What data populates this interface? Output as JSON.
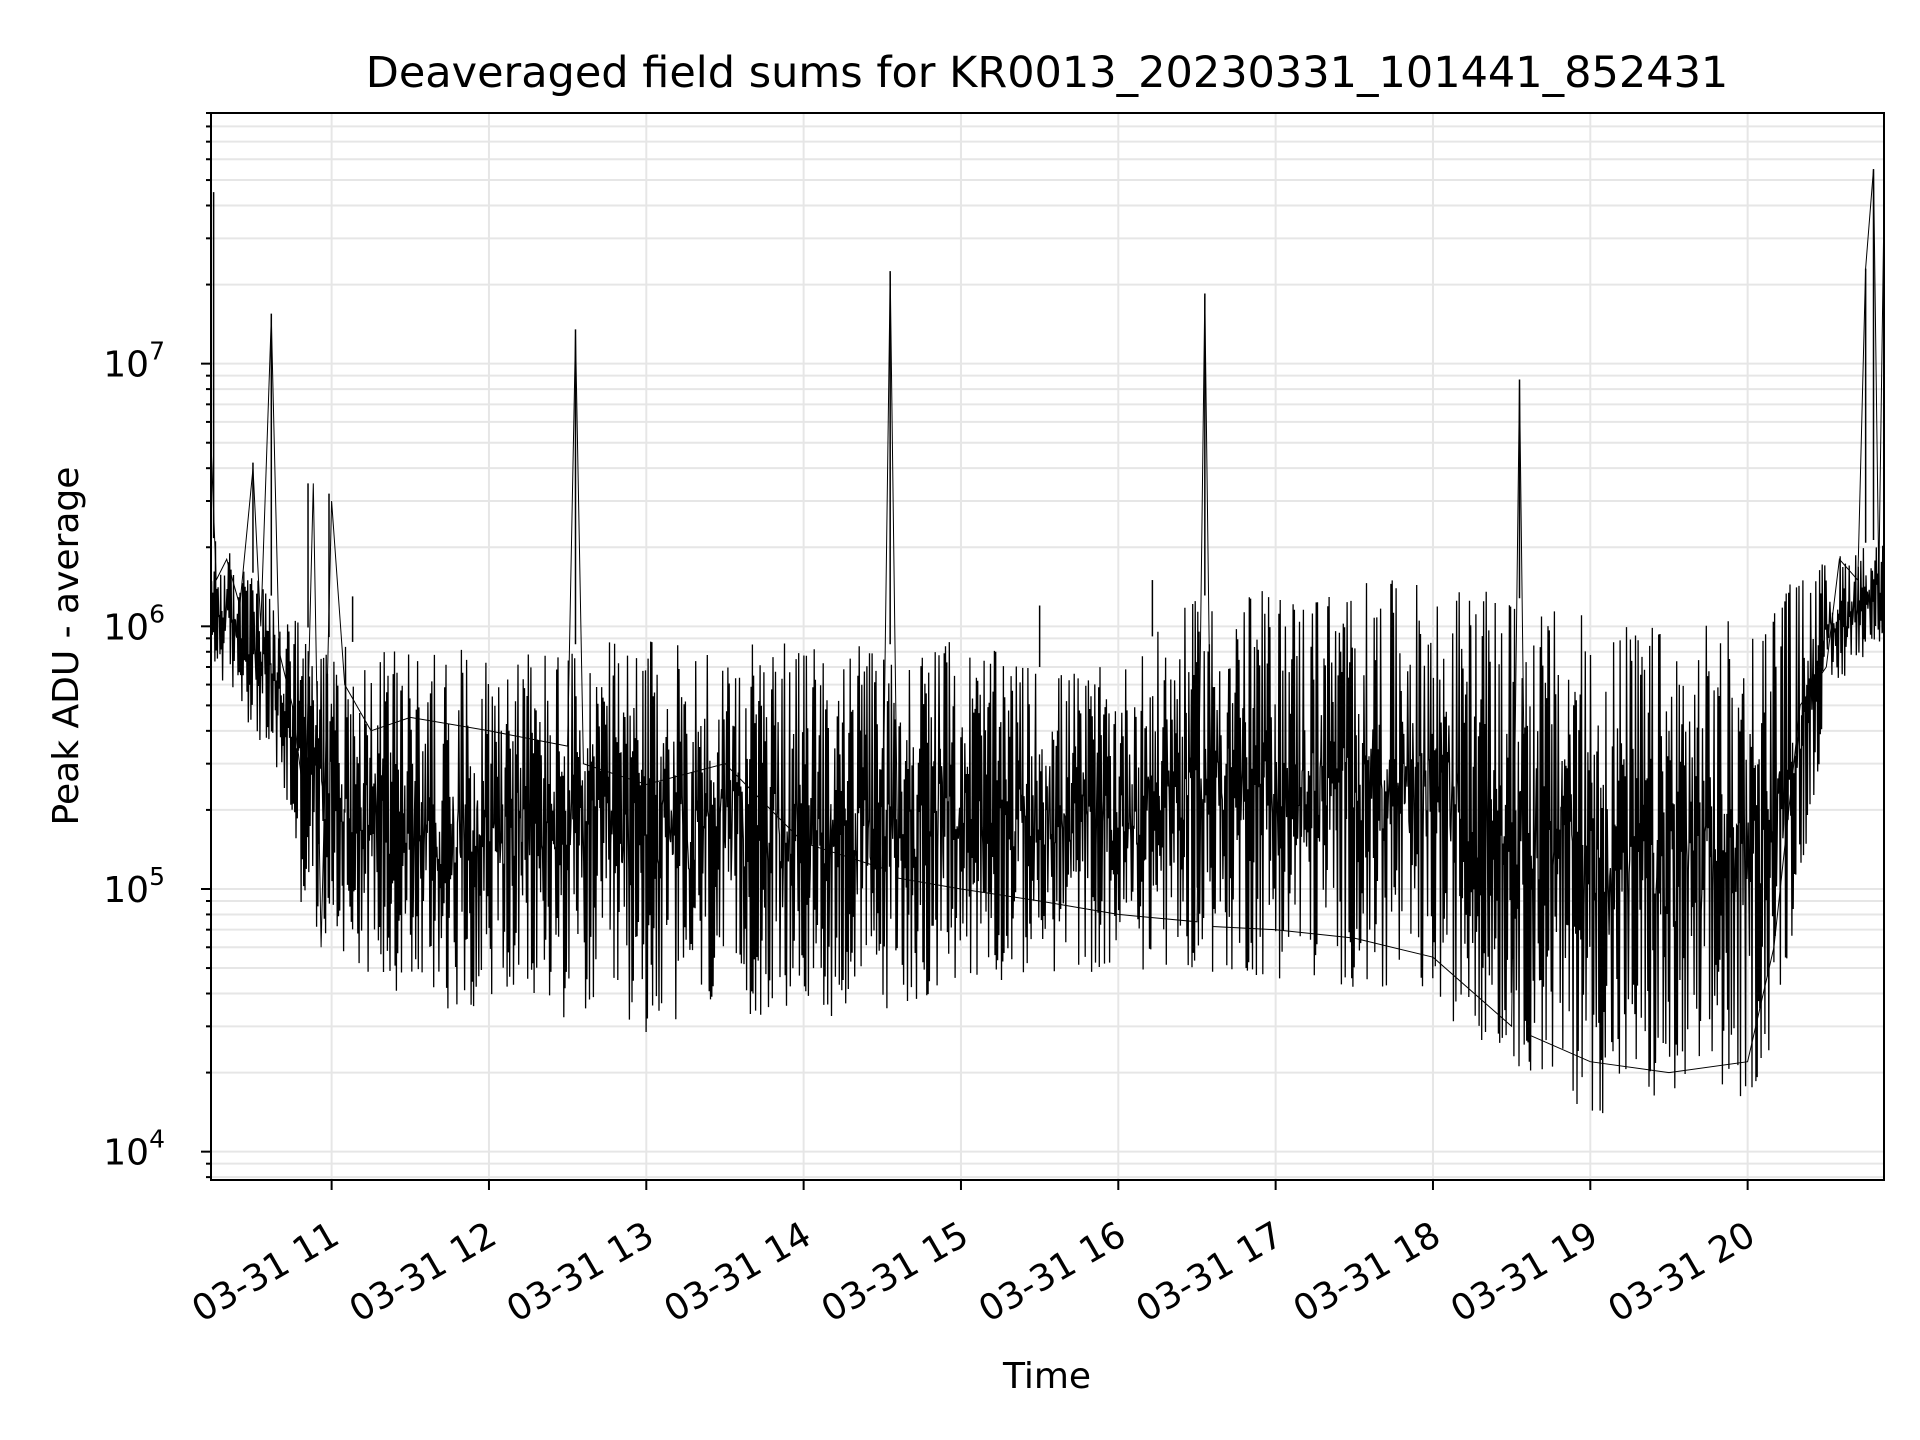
{
  "chart_data": {
    "type": "line",
    "title": "Deaveraged field sums for KR0013_20230331_101441_852431",
    "xlabel": "Time",
    "ylabel": "Peak ADU - average",
    "yscale": "log",
    "ylim": [
      7800,
      90000000
    ],
    "xlim": [
      "2023-03-31 10:14",
      "2023-03-31 20:52"
    ],
    "x_ticks": [
      {
        "t": "2023-03-31 11:00",
        "label": "03-31 11"
      },
      {
        "t": "2023-03-31 12:00",
        "label": "03-31 12"
      },
      {
        "t": "2023-03-31 13:00",
        "label": "03-31 13"
      },
      {
        "t": "2023-03-31 14:00",
        "label": "03-31 14"
      },
      {
        "t": "2023-03-31 15:00",
        "label": "03-31 15"
      },
      {
        "t": "2023-03-31 16:00",
        "label": "03-31 16"
      },
      {
        "t": "2023-03-31 17:00",
        "label": "03-31 17"
      },
      {
        "t": "2023-03-31 18:00",
        "label": "03-31 18"
      },
      {
        "t": "2023-03-31 19:00",
        "label": "03-31 19"
      },
      {
        "t": "2023-03-31 20:00",
        "label": "03-31 20"
      }
    ],
    "y_ticks": [
      {
        "value": 10000,
        "base": "10",
        "exp": "4"
      },
      {
        "value": 100000,
        "base": "10",
        "exp": "5"
      },
      {
        "value": 1000000,
        "base": "10",
        "exp": "6"
      },
      {
        "value": 10000000,
        "base": "10",
        "exp": "7"
      }
    ],
    "grid": true,
    "line_color": "#000000",
    "grid_color": "#e6e6e6",
    "series": [
      {
        "points": [
          [
            "2023-03-31 10:14",
            5000000
          ],
          [
            "2023-03-31 10:16",
            1500000
          ],
          [
            "2023-03-31 10:20",
            1800000
          ],
          [
            "2023-03-31 10:25",
            1200000
          ],
          [
            "2023-03-31 10:30",
            4000000
          ],
          [
            "2023-03-31 10:33",
            1000000
          ],
          [
            "2023-03-31 10:37",
            15000000
          ],
          [
            "2023-03-31 10:40",
            800000
          ],
          [
            "2023-03-31 10:45",
            500000
          ],
          [
            "2023-03-31 10:50",
            200000
          ],
          [
            "2023-03-31 10:53",
            3500000
          ],
          [
            "2023-03-31 10:56",
            60000
          ],
          [
            "2023-03-31 11:00",
            3000000
          ],
          [
            "2023-03-31 11:05",
            600000
          ],
          [
            "2023-03-31 11:15",
            400000
          ],
          [
            "2023-03-31 11:30",
            450000
          ],
          [
            "2023-03-31 12:00",
            400000
          ],
          [
            "2023-03-31 12:30",
            350000
          ],
          [
            "2023-03-31 12:33",
            13000000
          ],
          [
            "2023-03-31 12:36",
            300000
          ],
          [
            "2023-03-31 13:00",
            250000
          ],
          [
            "2023-03-31 13:30",
            300000
          ],
          [
            "2023-03-31 14:00",
            150000
          ],
          [
            "2023-03-31 14:30",
            120000
          ],
          [
            "2023-03-31 14:33",
            22000000
          ],
          [
            "2023-03-31 14:36",
            110000
          ],
          [
            "2023-03-31 15:00",
            100000
          ],
          [
            "2023-03-31 15:30",
            90000
          ],
          [
            "2023-03-31 16:00",
            80000
          ],
          [
            "2023-03-31 16:30",
            75000
          ],
          [
            "2023-03-31 16:33",
            18000000
          ],
          [
            "2023-03-31 16:36",
            72000
          ],
          [
            "2023-03-31 17:00",
            70000
          ],
          [
            "2023-03-31 17:30",
            65000
          ],
          [
            "2023-03-31 18:00",
            55000
          ],
          [
            "2023-03-31 18:30",
            30000
          ],
          [
            "2023-03-31 18:33",
            8500000
          ],
          [
            "2023-03-31 18:36",
            28000
          ],
          [
            "2023-03-31 19:00",
            22000
          ],
          [
            "2023-03-31 19:30",
            20000
          ],
          [
            "2023-03-31 20:00",
            22000
          ],
          [
            "2023-03-31 20:10",
            60000
          ],
          [
            "2023-03-31 20:20",
            500000
          ],
          [
            "2023-03-31 20:30",
            700000
          ],
          [
            "2023-03-31 20:35",
            1800000
          ],
          [
            "2023-03-31 20:42",
            1500000
          ],
          [
            "2023-03-31 20:45",
            23000000
          ],
          [
            "2023-03-31 20:48",
            55000000
          ],
          [
            "2023-03-31 20:50",
            1500000
          ],
          [
            "2023-03-31 20:52",
            40000000
          ]
        ],
        "lower_envelope": [
          [
            "2023-03-31 10:14",
            600000
          ],
          [
            "2023-03-31 10:20",
            600000
          ],
          [
            "2023-03-31 10:30",
            400000
          ],
          [
            "2023-03-31 10:40",
            250000
          ],
          [
            "2023-03-31 10:50",
            70000
          ],
          [
            "2023-03-31 11:00",
            60000
          ],
          [
            "2023-03-31 11:30",
            35000
          ],
          [
            "2023-03-31 12:00",
            35000
          ],
          [
            "2023-03-31 12:30",
            32000
          ],
          [
            "2023-03-31 13:00",
            28000
          ],
          [
            "2023-03-31 13:30",
            32000
          ],
          [
            "2023-03-31 14:00",
            32000
          ],
          [
            "2023-03-31 14:30",
            33000
          ],
          [
            "2023-03-31 15:00",
            42000
          ],
          [
            "2023-03-31 15:30",
            47000
          ],
          [
            "2023-03-31 16:00",
            48000
          ],
          [
            "2023-03-31 16:30",
            48000
          ],
          [
            "2023-03-31 17:00",
            45000
          ],
          [
            "2023-03-31 17:30",
            42000
          ],
          [
            "2023-03-31 18:00",
            35000
          ],
          [
            "2023-03-31 18:30",
            22000
          ],
          [
            "2023-03-31 18:45",
            17000
          ],
          [
            "2023-03-31 19:00",
            14000
          ],
          [
            "2023-03-31 19:30",
            13000
          ],
          [
            "2023-03-31 20:00",
            15000
          ],
          [
            "2023-03-31 20:10",
            25000
          ],
          [
            "2023-03-31 20:20",
            100000
          ],
          [
            "2023-03-31 20:30",
            450000
          ],
          [
            "2023-03-31 20:40",
            700000
          ],
          [
            "2023-03-31 20:52",
            900000
          ]
        ],
        "upper_envelope": [
          [
            "2023-03-31 10:14",
            2200000
          ],
          [
            "2023-03-31 10:20",
            2000000
          ],
          [
            "2023-03-31 10:30",
            1600000
          ],
          [
            "2023-03-31 10:40",
            1200000
          ],
          [
            "2023-03-31 10:50",
            1000000
          ],
          [
            "2023-03-31 11:00",
            900000
          ],
          [
            "2023-03-31 11:30",
            800000
          ],
          [
            "2023-03-31 12:00",
            850000
          ],
          [
            "2023-03-31 12:30",
            850000
          ],
          [
            "2023-03-31 13:00",
            900000
          ],
          [
            "2023-03-31 13:30",
            900000
          ],
          [
            "2023-03-31 14:00",
            850000
          ],
          [
            "2023-03-31 14:30",
            850000
          ],
          [
            "2023-03-31 15:00",
            900000
          ],
          [
            "2023-03-31 15:30",
            700000
          ],
          [
            "2023-03-31 16:00",
            700000
          ],
          [
            "2023-03-31 16:30",
            1300000
          ],
          [
            "2023-03-31 17:00",
            1400000
          ],
          [
            "2023-03-31 17:30",
            1500000
          ],
          [
            "2023-03-31 18:00",
            1500000
          ],
          [
            "2023-03-31 18:30",
            1300000
          ],
          [
            "2023-03-31 19:00",
            1100000
          ],
          [
            "2023-03-31 19:30",
            1000000
          ],
          [
            "2023-03-31 20:00",
            1100000
          ],
          [
            "2023-03-31 20:10",
            1400000
          ],
          [
            "2023-03-31 20:20",
            1600000
          ],
          [
            "2023-03-31 20:30",
            1800000
          ],
          [
            "2023-03-31 20:40",
            2000000
          ],
          [
            "2023-03-31 20:52",
            2200000
          ]
        ],
        "spikes": [
          [
            "2023-03-31 10:15",
            45000000
          ],
          [
            "2023-03-31 10:30",
            4200000
          ],
          [
            "2023-03-31 10:37",
            15500000
          ],
          [
            "2023-03-31 10:51",
            3500000
          ],
          [
            "2023-03-31 10:59",
            3200000
          ],
          [
            "2023-03-31 11:08",
            1300000
          ],
          [
            "2023-03-31 12:33",
            13500000
          ],
          [
            "2023-03-31 14:33",
            22500000
          ],
          [
            "2023-03-31 15:30",
            1200000
          ],
          [
            "2023-03-31 16:13",
            1500000
          ],
          [
            "2023-03-31 16:33",
            18500000
          ],
          [
            "2023-03-31 17:30",
            1500000
          ],
          [
            "2023-03-31 18:33",
            8700000
          ],
          [
            "2023-03-31 20:45",
            23000000
          ],
          [
            "2023-03-31 20:48",
            55000000
          ],
          [
            "2023-03-31 20:52",
            40000000
          ]
        ]
      }
    ]
  }
}
